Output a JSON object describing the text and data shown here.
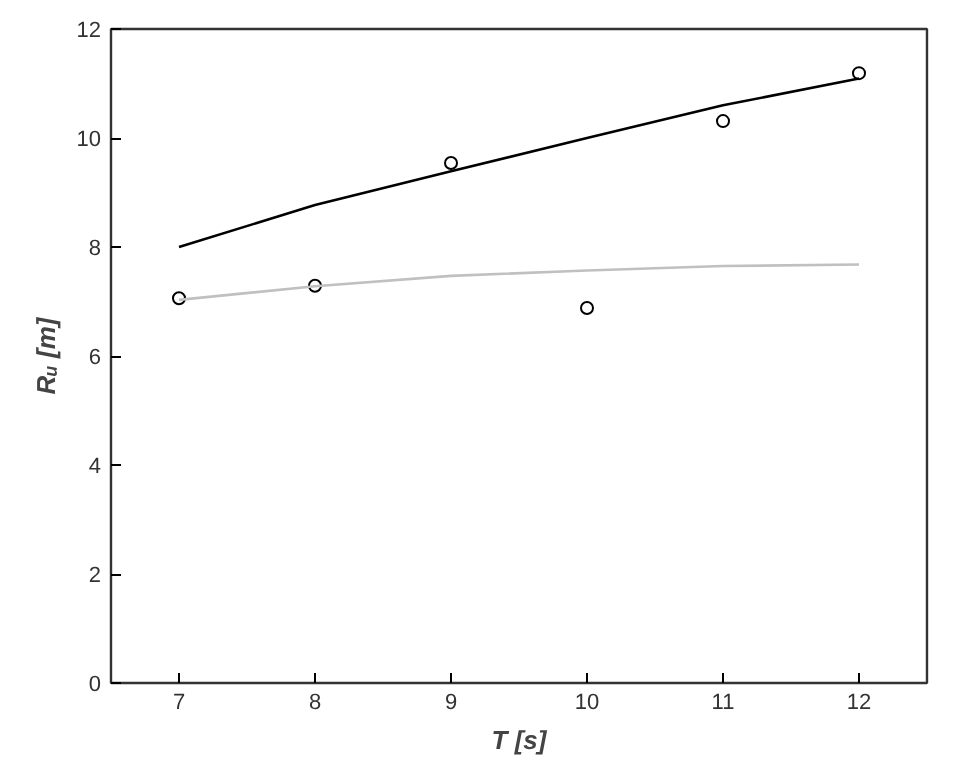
{
  "chart_data": {
    "type": "scatter",
    "xlabel": "T [s]",
    "ylabel": "Rᵤ [m]",
    "xlim": [
      6.5,
      12.5
    ],
    "ylim": [
      0,
      12
    ],
    "xticks": [
      7,
      8,
      9,
      10,
      11,
      12
    ],
    "yticks": [
      0,
      2,
      4,
      6,
      8,
      10,
      12
    ],
    "grid": false,
    "series": [
      {
        "color": "#000000",
        "marker": "circle",
        "x": [
          7,
          8,
          9,
          10,
          11,
          12
        ],
        "values": [
          7.06,
          7.29,
          9.54,
          6.88,
          10.31,
          11.19
        ]
      },
      {
        "type": "line",
        "color": "#000000",
        "marker": "none",
        "x": [
          7,
          8,
          9,
          10,
          11,
          12
        ],
        "values": [
          8.0,
          8.77,
          9.39,
          10.0,
          10.6,
          11.09
        ]
      },
      {
        "type": "line",
        "color": "#c0c0c0",
        "marker": "none",
        "x": [
          7,
          8,
          9,
          10,
          11,
          12
        ],
        "values": [
          7.03,
          7.28,
          7.47,
          7.57,
          7.65,
          7.68
        ]
      }
    ]
  }
}
